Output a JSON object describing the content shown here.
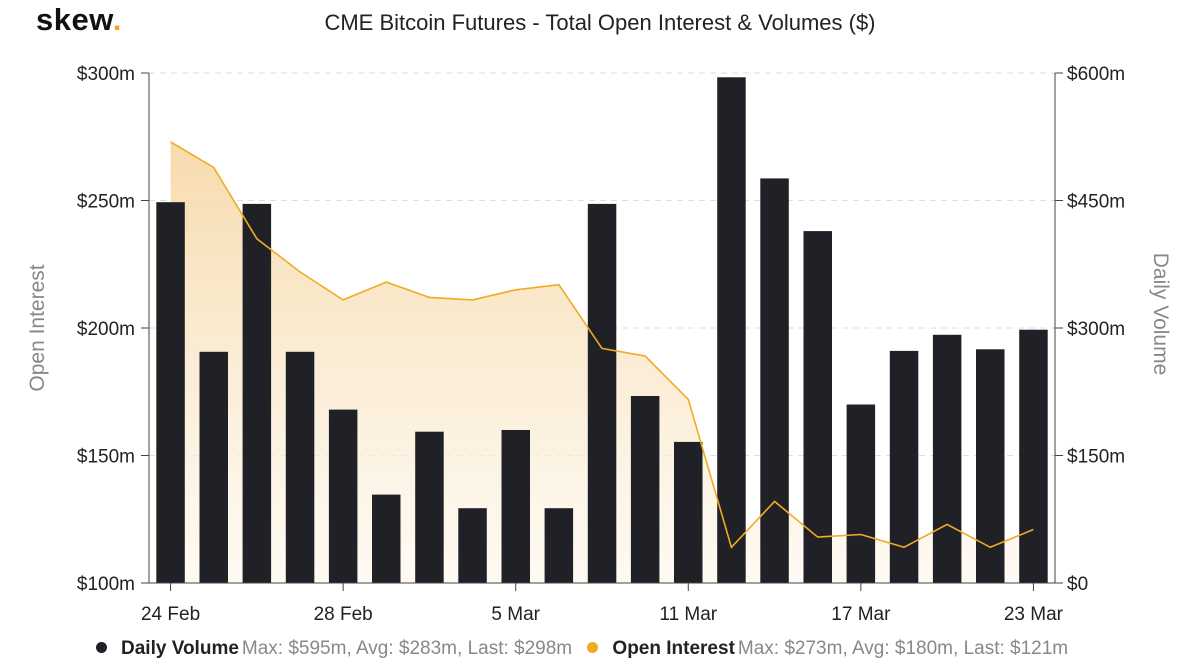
{
  "header": {
    "logo_text": "skew",
    "logo_dot": "."
  },
  "colors": {
    "volume_bar": "#202126",
    "open_interest_line": "#f0ab22",
    "open_interest_fill": "#f8e2bd",
    "grid": "#dddddd"
  },
  "legend": {
    "volume": {
      "name": "Daily Volume",
      "stats": "Max: $595m, Avg: $283m, Last: $298m",
      "color": "#202126"
    },
    "open_interest": {
      "name": "Open Interest",
      "stats": "Max: $273m, Avg: $180m, Last: $121m",
      "color": "#f0ab22"
    }
  },
  "chart_data": {
    "type": "bar",
    "title": "CME Bitcoin Futures - Total Open Interest & Volumes ($)",
    "left_axis": {
      "title": "Open Interest",
      "range": [
        100,
        300
      ],
      "ticks": [
        100,
        150,
        200,
        250,
        300
      ],
      "tick_labels": [
        "$100m",
        "$150m",
        "$200m",
        "$250m",
        "$300m"
      ]
    },
    "right_axis": {
      "title": "Daily Volume",
      "range": [
        0,
        600
      ],
      "ticks": [
        0,
        150,
        300,
        450,
        600
      ],
      "tick_labels": [
        "$0",
        "$150m",
        "$300m",
        "$450m",
        "$600m"
      ]
    },
    "x_tick_labels": [
      {
        "index": 0,
        "label": "24 Feb"
      },
      {
        "index": 4,
        "label": "28 Feb"
      },
      {
        "index": 8,
        "label": "5 Mar"
      },
      {
        "index": 12,
        "label": "11 Mar"
      },
      {
        "index": 16,
        "label": "17 Mar"
      },
      {
        "index": 20,
        "label": "23 Mar"
      }
    ],
    "series": [
      {
        "name": "Daily Volume",
        "type": "bar",
        "axis": "right",
        "values": [
          448,
          272,
          446,
          272,
          204,
          104,
          178,
          88,
          180,
          88,
          446,
          220,
          166,
          595,
          476,
          414,
          210,
          273,
          292,
          275,
          298
        ]
      },
      {
        "name": "Open Interest",
        "type": "area",
        "axis": "left",
        "values": [
          273,
          263,
          235,
          222,
          211,
          218,
          212,
          211,
          215,
          217,
          192,
          189,
          172,
          114,
          132,
          118,
          119,
          114,
          123,
          114,
          121
        ]
      }
    ],
    "grid": true,
    "legend_position": "bottom"
  }
}
